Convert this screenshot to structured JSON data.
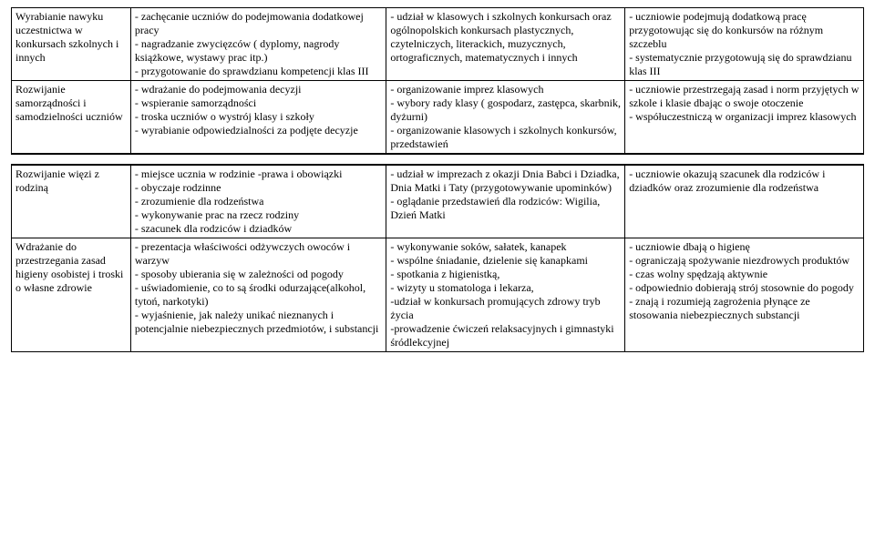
{
  "font_family": "Times New Roman",
  "base_font_size_pt": 12,
  "text_color": "#000000",
  "border_color": "#000000",
  "background_color": "#ffffff",
  "column_widths_pct": [
    14,
    30,
    28,
    28
  ],
  "tables": [
    {
      "rows": [
        {
          "c1": "Wyrabianie nawyku uczestnictwa w konkursach szkolnych i innych",
          "c2": "- zachęcanie uczniów do podejmowania dodatkowej pracy\n- nagradzanie zwycięzców ( dyplomy, nagrody książkowe, wystawy prac itp.)\n- przygotowanie do sprawdzianu kompetencji klas III",
          "c3": "- udział w klasowych i szkolnych konkursach oraz ogólnopolskich konkursach plastycznych, czytelniczych, literackich, muzycznych, ortograficznych, matematycznych i innych",
          "c4": "- uczniowie podejmują dodatkową pracę przygotowując się do konkursów na różnym szczeblu\n- systematycznie przygotowują się do sprawdzianu klas III"
        },
        {
          "c1": "Rozwijanie samorządności i samodzielności uczniów",
          "c2": "- wdrażanie do podejmowania decyzji\n- wspieranie samorządności\n- troska uczniów o wystrój klasy i szkoły\n- wyrabianie odpowiedzialności za podjęte decyzje",
          "c3": "- organizowanie imprez klasowych\n- wybory rady klasy ( gospodarz, zastępca, skarbnik, dyżurni)\n- organizowanie klasowych i szkolnych konkursów, przedstawień",
          "c4": "- uczniowie przestrzegają zasad i norm przyjętych w szkole i klasie dbając o swoje otoczenie\n- współuczestniczą w organizacji imprez klasowych"
        }
      ]
    },
    {
      "rows": [
        {
          "c1": "Rozwijanie więzi z rodziną",
          "c2": "- miejsce ucznia w rodzinie -prawa i obowiązki\n- obyczaje rodzinne\n- zrozumienie dla rodzeństwa\n- wykonywanie prac na rzecz rodziny\n- szacunek dla rodziców i dziadków",
          "c3": "- udział w imprezach z okazji Dnia Babci i Dziadka, Dnia Matki i Taty (przygotowywanie upominków)\n- oglądanie przedstawień dla rodziców: Wigilia, Dzień Matki",
          "c4": "- uczniowie okazują szacunek dla rodziców i dziadków oraz zrozumienie dla rodzeństwa"
        },
        {
          "c1": "Wdrażanie do przestrzegania zasad higieny osobistej i troski o własne zdrowie",
          "c2": "- prezentacja właściwości odżywczych owoców i warzyw\n- sposoby ubierania się w zależności od pogody\n- uświadomienie, co to są środki odurzające(alkohol, tytoń, narkotyki)\n- wyjaśnienie, jak należy unikać nieznanych i potencjalnie niebezpiecznych  przedmiotów, i substancji",
          "c3": "-  wykonywanie  soków,  sałatek, kanapek\n- wspólne  śniadanie,  dzielenie  się kanapkami\n- spotkania z higienistką,\n- wizyty u stomatologa i lekarza,\n-udział w konkursach promujących zdrowy tryb życia\n-prowadzenie ćwiczeń relaksacyjnych i gimnastyki śródlekcyjnej",
          "c4": "- uczniowie dbają o higienę\n- ograniczają spożywanie niezdrowych produktów\n- czas wolny spędzają aktywnie\n- odpowiednio dobierają strój stosownie do pogody\n- znają i rozumieją zagrożenia płynące ze stosowania niebezpiecznych substancji"
        }
      ]
    }
  ]
}
